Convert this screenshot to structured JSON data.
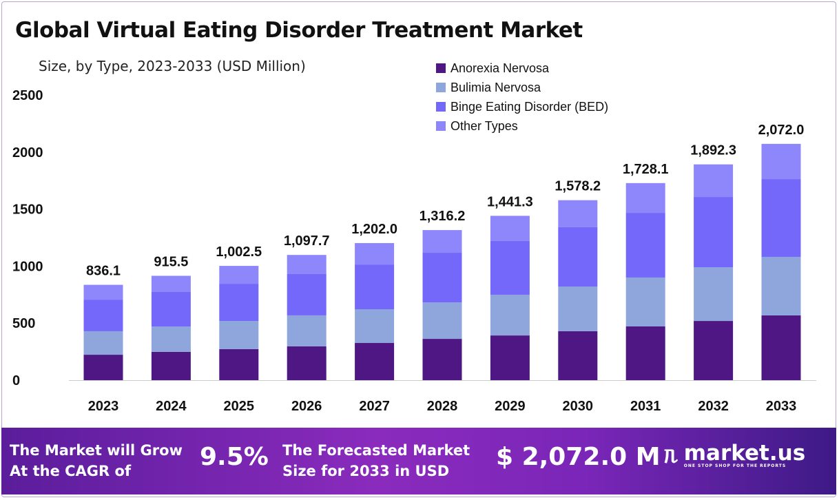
{
  "header": {
    "title": "Global Virtual Eating Disorder Treatment Market",
    "subtitle": "Size, by Type, 2023-2033 (USD Million)"
  },
  "chart_data": {
    "type": "bar",
    "stacked": true,
    "title": "Global Virtual Eating Disorder Treatment Market",
    "subtitle": "Size, by Type, 2023-2033 (USD Million)",
    "categories": [
      "2023",
      "2024",
      "2025",
      "2026",
      "2027",
      "2028",
      "2029",
      "2030",
      "2031",
      "2032",
      "2033"
    ],
    "series": [
      {
        "name": "Anorexia Nervosa",
        "color": "#4e1783",
        "values": [
          223,
          248,
          272,
          296,
          326,
          362,
          392,
          429,
          471,
          519,
          568
        ]
      },
      {
        "name": "Bulimia Nervosa",
        "color": "#8ea6dc",
        "values": [
          206,
          223,
          247,
          272,
          296,
          320,
          357,
          392,
          429,
          471,
          513
        ]
      },
      {
        "name": "Binge Eating Disorder (BED)",
        "color": "#7468fa",
        "values": [
          277,
          302,
          326,
          362,
          392,
          435,
          471,
          520,
          567,
          616,
          682
        ]
      },
      {
        "name": "Other Types",
        "color": "#8d87fb",
        "values": [
          130,
          142,
          157,
          168,
          188,
          199,
          221,
          237,
          261,
          286,
          309
        ]
      }
    ],
    "totals": [
      "836.1",
      "915.5",
      "1,002.5",
      "1,097.7",
      "1,202.0",
      "1,316.2",
      "1,441.3",
      "1,578.2",
      "1,728.1",
      "1,892.3",
      "2,072.0"
    ],
    "total_values": [
      836.1,
      915.5,
      1002.5,
      1097.7,
      1202.0,
      1316.2,
      1441.3,
      1578.2,
      1728.1,
      1892.3,
      2072.0
    ],
    "yticks": [
      "0",
      "500",
      "1000",
      "1500",
      "2000",
      "2500"
    ],
    "ylim": [
      0,
      2500
    ],
    "grid": false,
    "legend_position": "top-right"
  },
  "footer": {
    "cagr_label_line1": "The Market will Grow",
    "cagr_label_line2": "At the CAGR of",
    "cagr_value": "9.5%",
    "forecast_label_line1": "The Forecasted Market",
    "forecast_label_line2": "Size for 2033 in USD",
    "forecast_value": "$ 2,072.0 M",
    "brand": "market.us",
    "tagline": "ONE STOP SHOP FOR THE REPORTS"
  }
}
